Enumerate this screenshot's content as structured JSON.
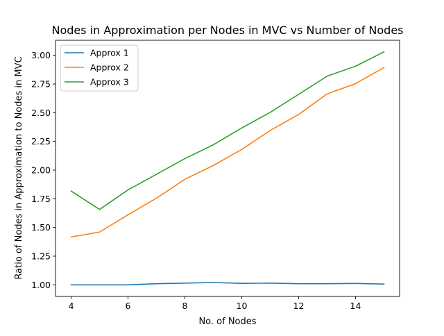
{
  "chart_data": {
    "type": "line",
    "title": "Nodes in Approximation per Nodes in MVC vs Number of Nodes",
    "xlabel": "No. of Nodes",
    "ylabel": "Ratio of Nodes in Approximation to Nodes in MVC",
    "xlim": [
      3.45,
      15.55
    ],
    "ylim": [
      0.899,
      3.131
    ],
    "xticks": [
      4,
      6,
      8,
      10,
      12,
      14
    ],
    "yticks": [
      1.0,
      1.25,
      1.5,
      1.75,
      2.0,
      2.25,
      2.5,
      2.75,
      3.0
    ],
    "xtick_labels": [
      "4",
      "6",
      "8",
      "10",
      "12",
      "14"
    ],
    "ytick_labels": [
      "1.00",
      "1.25",
      "1.50",
      "1.75",
      "2.00",
      "2.25",
      "2.50",
      "2.75",
      "3.00"
    ],
    "grid": false,
    "legend_position": "upper-left",
    "x": [
      4,
      5,
      6,
      7,
      8,
      9,
      10,
      11,
      12,
      13,
      14,
      15
    ],
    "series": [
      {
        "name": "Approx 1",
        "color": "#1f77b4",
        "values": [
          1.0,
          1.0,
          1.0,
          1.01,
          1.015,
          1.02,
          1.013,
          1.015,
          1.01,
          1.01,
          1.012,
          1.007
        ]
      },
      {
        "name": "Approx 2",
        "color": "#ff7f0e",
        "values": [
          1.417,
          1.46,
          1.61,
          1.755,
          1.92,
          2.04,
          2.18,
          2.345,
          2.485,
          2.663,
          2.753,
          2.893
        ]
      },
      {
        "name": "Approx 3",
        "color": "#2ca02c",
        "values": [
          1.817,
          1.657,
          1.827,
          1.963,
          2.1,
          2.22,
          2.367,
          2.503,
          2.66,
          2.818,
          2.905,
          3.03
        ]
      }
    ]
  }
}
